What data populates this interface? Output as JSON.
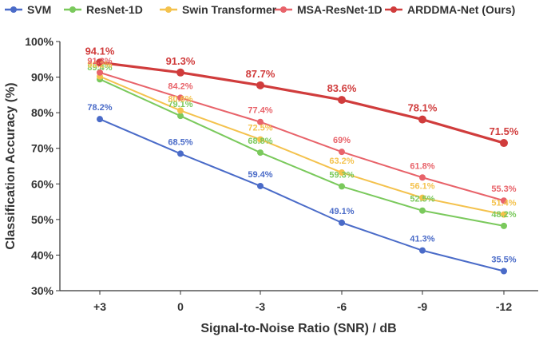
{
  "chart_data": {
    "type": "line",
    "title": "",
    "xlabel": "Signal-to-Noise Ratio (SNR) / dB",
    "ylabel": "Classification Accuracy (%)",
    "categories": [
      "+3",
      "0",
      "-3",
      "-6",
      "-9",
      "-12"
    ],
    "ylim": [
      30,
      100
    ],
    "yticks": [
      "30%",
      "40%",
      "50%",
      "60%",
      "70%",
      "80%",
      "90%",
      "100%"
    ],
    "y_unit": "%",
    "grid": false,
    "legend_position": "top",
    "series": [
      {
        "name": "SVM",
        "color": "#4a6bc8",
        "values": [
          78.2,
          68.5,
          59.4,
          49.1,
          41.3,
          35.5
        ]
      },
      {
        "name": "ResNet-1D",
        "color": "#7ac95c",
        "values": [
          89.4,
          79.1,
          68.8,
          59.3,
          52.5,
          48.2
        ]
      },
      {
        "name": "Swin Transformer",
        "color": "#f4c24d",
        "values": [
          90.2,
          80.6,
          72.5,
          63.2,
          56.1,
          51.4
        ]
      },
      {
        "name": "MSA-ResNet-1D",
        "color": "#e8636a",
        "values": [
          91.3,
          84.2,
          77.4,
          69,
          61.8,
          55.3
        ]
      },
      {
        "name": "ARDDMA-Net (Ours)",
        "color": "#d03c3c",
        "values": [
          94.1,
          91.3,
          87.7,
          83.6,
          78.1,
          71.5
        ]
      }
    ]
  }
}
